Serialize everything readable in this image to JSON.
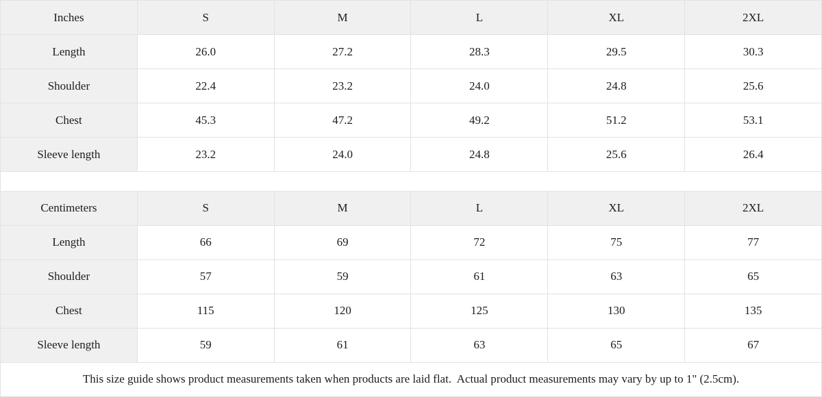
{
  "colors": {
    "header_bg": "#f0f0f1",
    "border": "#e2e2e2",
    "text": "#1c1c1c",
    "page_bg": "#ffffff"
  },
  "size_guide": {
    "sections": [
      {
        "unit_label": "Inches",
        "sizes": [
          "S",
          "M",
          "L",
          "XL",
          "2XL"
        ],
        "rows": [
          {
            "label": "Length",
            "values": [
              "26.0",
              "27.2",
              "28.3",
              "29.5",
              "30.3"
            ]
          },
          {
            "label": "Shoulder",
            "values": [
              "22.4",
              "23.2",
              "24.0",
              "24.8",
              "25.6"
            ]
          },
          {
            "label": "Chest",
            "values": [
              "45.3",
              "47.2",
              "49.2",
              "51.2",
              "53.1"
            ]
          },
          {
            "label": "Sleeve length",
            "values": [
              "23.2",
              "24.0",
              "24.8",
              "25.6",
              "26.4"
            ]
          }
        ]
      },
      {
        "unit_label": "Centimeters",
        "sizes": [
          "S",
          "M",
          "L",
          "XL",
          "2XL"
        ],
        "rows": [
          {
            "label": "Length",
            "values": [
              "66",
              "69",
              "72",
              "75",
              "77"
            ]
          },
          {
            "label": "Shoulder",
            "values": [
              "57",
              "59",
              "61",
              "63",
              "65"
            ]
          },
          {
            "label": "Chest",
            "values": [
              "115",
              "120",
              "125",
              "130",
              "135"
            ]
          },
          {
            "label": "Sleeve length",
            "values": [
              "59",
              "61",
              "63",
              "65",
              "67"
            ]
          }
        ]
      }
    ],
    "footnote": "This size guide shows product measurements taken when products are laid flat.  Actual product measurements may vary by up to 1\" (2.5cm)."
  }
}
